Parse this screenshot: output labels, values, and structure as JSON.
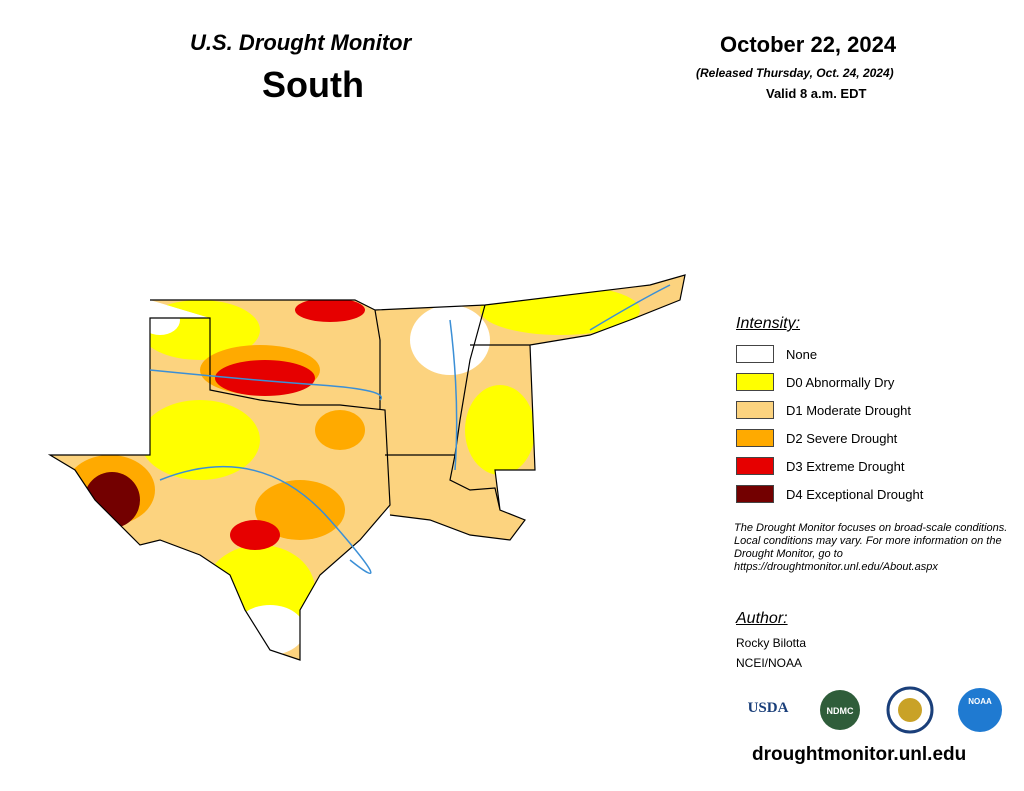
{
  "header": {
    "title": "U.S. Drought Monitor",
    "region": "South",
    "date": "October 22, 2024",
    "released": "(Released Thursday, Oct. 24, 2024)",
    "valid": "Valid 8 a.m. EDT"
  },
  "legend": {
    "title": "Intensity:",
    "items": [
      {
        "label": "None",
        "color": "#ffffff"
      },
      {
        "label": "D0 Abnormally Dry",
        "color": "#ffff00"
      },
      {
        "label": "D1 Moderate Drought",
        "color": "#fcd37f"
      },
      {
        "label": "D2 Severe Drought",
        "color": "#ffaa00"
      },
      {
        "label": "D3 Extreme Drought",
        "color": "#e60000"
      },
      {
        "label": "D4 Exceptional Drought",
        "color": "#730000"
      }
    ]
  },
  "note": "The Drought Monitor focuses on broad-scale conditions. Local conditions may vary. For more information on the Drought Monitor, go to https://droughtmonitor.unl.edu/About.aspx",
  "author": {
    "title": "Author:",
    "name": "Rocky Bilotta",
    "org": "NCEI/NOAA"
  },
  "logos": [
    "USDA",
    "NDMC",
    "NOAA"
  ],
  "url": "droughtmonitor.unl.edu"
}
